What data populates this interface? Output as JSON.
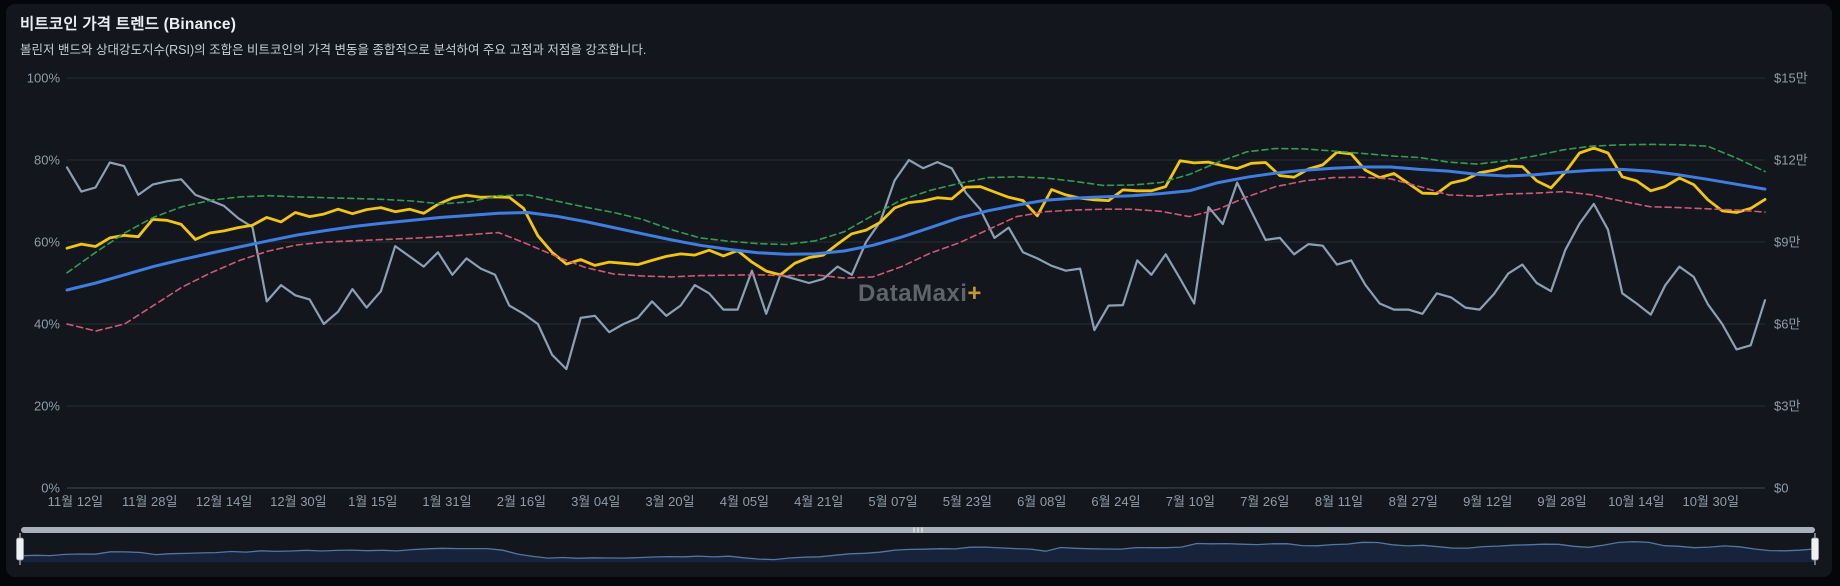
{
  "header": {
    "title": "비트코인 가격 트렌드 (Binance)",
    "subtitle": "볼린저 밴드와 상대강도지수(RSI)의 조합은 비트코인의 가격 변동을 종합적으로 분석하여 주요 고점과 저점을 강조합니다."
  },
  "watermark": {
    "brand": "DataMaxi",
    "plus": "+"
  },
  "colors": {
    "background": "#04060a",
    "card": "#13171d",
    "grid": "#262c34",
    "axis_line": "#3f4752",
    "tick_label": "#8f9cab",
    "rsi": "#8ba0b4",
    "price": "#f2c511",
    "middle_band": "#3e7ee0",
    "upper_band": "#2f9e50",
    "lower_band": "#cd5a70",
    "nav_line": "#54759e",
    "nav_fill": "#16233a",
    "scrollbar": "#aab0bb",
    "scrollbar_grip": "#e9ebef",
    "handle": "#eef1f4",
    "handle_border": "#9aa2ad"
  },
  "chart_data": {
    "type": "line",
    "legend": "none",
    "grid": "horizontal",
    "note": "Series values are stored in left-axis % units (0-100). Both axes share gridlines: 100%=$15만, so right-axis price $ = value × 1500.",
    "y_axis_left": {
      "ticks": [
        "100%",
        "80%",
        "60%",
        "40%",
        "20%",
        "0%"
      ],
      "range": [
        0,
        100
      ]
    },
    "y_axis_right": {
      "ticks": [
        "$15만",
        "$12만",
        "$9만",
        "$6만",
        "$3만",
        "$0"
      ],
      "range": [
        0,
        150000
      ]
    },
    "x_ticks": [
      "11월 12일",
      "11월 28일",
      "12월 14일",
      "12월 30일",
      "1월 15일",
      "1월 31일",
      "2월 16일",
      "3월 04일",
      "3월 20일",
      "4월 05일",
      "4월 21일",
      "5월 07일",
      "5월 23일",
      "6월 08일",
      "6월 24일",
      "7월 10일",
      "7월 26일",
      "8월 11일",
      "8월 27일",
      "9월 12일",
      "9월 28일",
      "10월 14일",
      "10월 30일"
    ],
    "series": [
      {
        "id": "rsi",
        "axis": "left",
        "style": "solid",
        "width": 2.2,
        "color": "#8ba0b4",
        "values": [
          78.2,
          72.3,
          73.3,
          79.4,
          78.5,
          71.5,
          74,
          74.8,
          75.3,
          71.5,
          70.2,
          68.8,
          65.8,
          63.6,
          45.5,
          49.5,
          47,
          46,
          40,
          43,
          48.5,
          44,
          48,
          59,
          56.5,
          54,
          57.5,
          52,
          56,
          53.5,
          52,
          44.5,
          42.5,
          40,
          32.5,
          29,
          41.5,
          42,
          38,
          40,
          41.5,
          45.5,
          42,
          44.5,
          49.5,
          47.5,
          43.5,
          43.5,
          53,
          42.5,
          52,
          51,
          50,
          51,
          54,
          52,
          60,
          65,
          75,
          80,
          78,
          79.5,
          78,
          72,
          68,
          61,
          63.5,
          57.5,
          56,
          54.2,
          53,
          53.5,
          38.5,
          44.5,
          44.6,
          55.5,
          52,
          57,
          51.1,
          45,
          68.5,
          64.4,
          74.5,
          67.5,
          60.5,
          61,
          57,
          59.5,
          59.1,
          54.5,
          55.5,
          49.5,
          45,
          43.5,
          43.5,
          42.5,
          47.5,
          46.5,
          44,
          43.5,
          47.3,
          52.3,
          54.5,
          50,
          48,
          58,
          64.5,
          69.3,
          63,
          47.5,
          45,
          42.3,
          49.4,
          54,
          51.5,
          44.8,
          40,
          33.8,
          34.8,
          45.8
        ]
      },
      {
        "id": "price",
        "axis": "right",
        "style": "solid",
        "width": 2.8,
        "color": "#f2c511",
        "values": [
          58.5,
          59.5,
          58.9,
          61,
          61.6,
          61.3,
          65.5,
          65.3,
          64.3,
          60.6,
          62.2,
          62.7,
          63.5,
          64.1,
          66,
          64.9,
          67.2,
          66.2,
          66.8,
          68,
          66.9,
          67.9,
          68.4,
          67.4,
          68,
          67,
          69.2,
          70.7,
          71.4,
          70.9,
          71,
          70.9,
          68.2,
          61.5,
          57.5,
          54.6,
          55.7,
          54.3,
          55.1,
          54.8,
          54.5,
          55.5,
          56.5,
          57.1,
          56.8,
          58,
          56.6,
          57.9,
          55.1,
          52.9,
          52,
          54.8,
          56.2,
          56.8,
          59.5,
          62,
          62.9,
          64.8,
          68.3,
          69.6,
          70,
          70.8,
          70.5,
          73.4,
          73.5,
          72.2,
          70.9,
          70.1,
          66.4,
          72.8,
          71.5,
          70.7,
          70.3,
          70.1,
          72.7,
          72.5,
          72.5,
          73.5,
          79.8,
          79.3,
          79.5,
          78.6,
          77.9,
          79.2,
          79.4,
          76.2,
          75.8,
          77.8,
          78.8,
          81.9,
          81.5,
          77.5,
          75.7,
          76.7,
          74.3,
          71.9,
          71.8,
          74.4,
          75.2,
          76.9,
          77.5,
          78.5,
          78.4,
          74.9,
          73.2,
          77,
          81.7,
          82.9,
          81.7,
          75.9,
          74.9,
          72.5,
          73.5,
          75.6,
          74,
          70.3,
          67.6,
          67.2,
          68.2,
          70.4
        ]
      },
      {
        "id": "bollinger-middle",
        "axis": "right",
        "style": "solid",
        "width": 3,
        "color": "#3e7ee0",
        "values": [
          48.3,
          50,
          52,
          54,
          55.7,
          57.3,
          58.8,
          60.3,
          61.7,
          62.8,
          63.8,
          64.6,
          65.3,
          66,
          66.5,
          67,
          67.2,
          66.3,
          65,
          63.5,
          62,
          60.5,
          59.2,
          58.2,
          57.4,
          57,
          57.1,
          57.8,
          59.2,
          61.2,
          63.5,
          65.9,
          67.6,
          69,
          70.2,
          70.7,
          71,
          71.3,
          71.8,
          72.5,
          74.5,
          75.8,
          76.8,
          77.5,
          78,
          78.3,
          78.3,
          77.7,
          77.3,
          76.5,
          76.1,
          76.4,
          77,
          77.5,
          77.7,
          77.3,
          76.4,
          75.3,
          74.1,
          72.9
        ]
      },
      {
        "id": "bollinger-upper",
        "axis": "right",
        "style": "dashed",
        "width": 1.6,
        "color": "#2f9e50",
        "values": [
          52.5,
          57.5,
          62.2,
          66,
          68.6,
          70.2,
          71,
          71.3,
          71,
          70.8,
          70.6,
          70.4,
          70,
          69.3,
          69.8,
          71.3,
          71.5,
          70,
          68.5,
          67.2,
          65.5,
          63,
          61,
          60.2,
          59.6,
          59.4,
          60.3,
          62.5,
          66.5,
          70.3,
          72.6,
          74.3,
          75.7,
          75.9,
          75.6,
          74.8,
          73.8,
          73.9,
          74.5,
          76.5,
          79.5,
          82,
          82.8,
          82.7,
          82.2,
          81.6,
          81,
          80.6,
          79.5,
          79,
          79.8,
          81,
          82.5,
          83.4,
          83.7,
          83.8,
          83.7,
          83.4,
          80.5,
          77.2
        ]
      },
      {
        "id": "bollinger-lower",
        "axis": "right",
        "style": "dashed",
        "width": 1.6,
        "color": "#cd5a70",
        "values": [
          40,
          38.3,
          40,
          44.5,
          49,
          52.5,
          55.5,
          57.8,
          59.3,
          60,
          60.3,
          60.6,
          60.9,
          61.3,
          61.8,
          62.3,
          59.5,
          56.5,
          53.8,
          52.2,
          51.7,
          51.5,
          51.8,
          51.9,
          52,
          51.8,
          52,
          51.2,
          51.5,
          54,
          57.3,
          59.8,
          63,
          66.2,
          67.4,
          67.8,
          68,
          68,
          67.5,
          66.2,
          68,
          71,
          73.5,
          74.9,
          75.7,
          75.8,
          75.4,
          73.5,
          71.5,
          71.2,
          71.7,
          71.9,
          72.3,
          71.5,
          70,
          68.6,
          68.4,
          68.1,
          67.8,
          67.3
        ]
      }
    ],
    "navigator": {
      "source": "price",
      "range_selected": "all"
    }
  }
}
